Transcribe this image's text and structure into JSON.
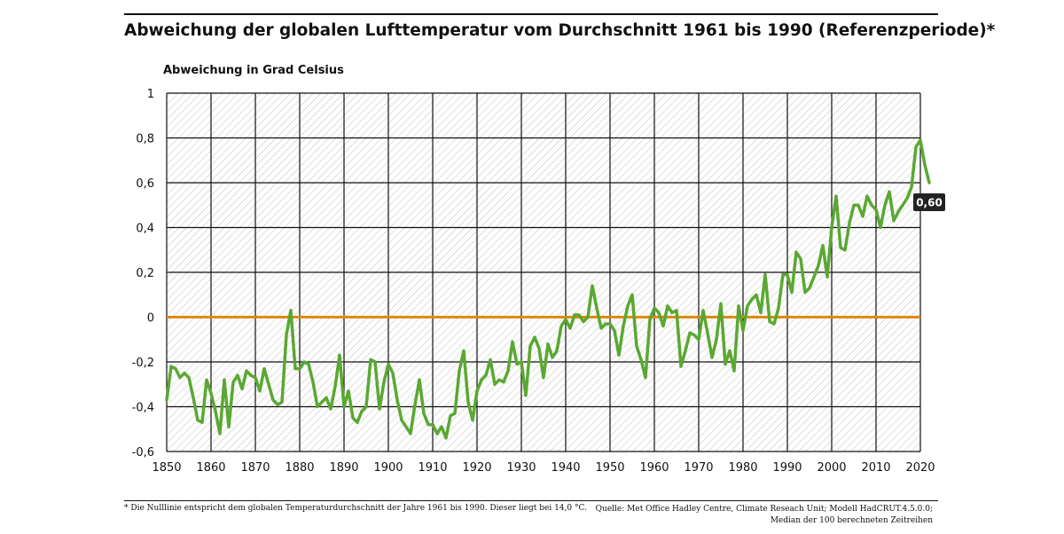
{
  "header": {
    "title": "Abweichung der globalen Lufttemperatur vom Durchschnitt 1961 bis 1990 (Referenzperiode)*",
    "y_axis_title": "Abweichung in Grad Celsius"
  },
  "footer": {
    "footnote": "* Die Nulllinie entspricht dem globalen Temperaturdurchschnitt der Jahre 1961 bis 1990. Dieser liegt bei 14,0 °C.",
    "source_line1": "Quelle: Met Office Hadley Centre, Climate Reseach Unit; Modell HadCRUT.4.5.0.0;",
    "source_line2": "Median der 100 berechneten Zeitreihen"
  },
  "colors": {
    "series": "#5aa832",
    "zero_line": "#e08a00",
    "grid": "#111111",
    "hatch": "#c8c8c8",
    "label_bg": "#222222"
  },
  "chart_data": {
    "type": "line",
    "title": "Abweichung der globalen Lufttemperatur vom Durchschnitt 1961 bis 1990 (Referenzperiode)*",
    "ylabel": "Abweichung in Grad Celsius",
    "xlabel": "",
    "xlim": [
      1850,
      2020
    ],
    "ylim": [
      -0.6,
      1.0
    ],
    "x_ticks": [
      "1850",
      "1860",
      "1870",
      "1880",
      "1890",
      "1900",
      "1910",
      "1920",
      "1930",
      "1940",
      "1950",
      "1960",
      "1970",
      "1980",
      "1990",
      "2000",
      "2010",
      "2020"
    ],
    "y_ticks": [
      "1",
      "0,8",
      "0,6",
      "0,4",
      "0,2",
      "0",
      "-0,2",
      "-0,4",
      "-0,6"
    ],
    "grid": true,
    "reference_line": {
      "y": 0
    },
    "end_label": "0,60",
    "series": [
      {
        "x_start": 1850,
        "values": [
          -0.37,
          -0.22,
          -0.23,
          -0.27,
          -0.25,
          -0.27,
          -0.36,
          -0.46,
          -0.47,
          -0.28,
          -0.34,
          -0.42,
          -0.52,
          -0.28,
          -0.49,
          -0.29,
          -0.26,
          -0.32,
          -0.24,
          -0.26,
          -0.27,
          -0.33,
          -0.23,
          -0.3,
          -0.37,
          -0.39,
          -0.38,
          -0.08,
          0.03,
          -0.23,
          -0.23,
          -0.2,
          -0.21,
          -0.29,
          -0.4,
          -0.38,
          -0.36,
          -0.41,
          -0.31,
          -0.17,
          -0.4,
          -0.33,
          -0.45,
          -0.47,
          -0.42,
          -0.4,
          -0.19,
          -0.2,
          -0.41,
          -0.29,
          -0.21,
          -0.25,
          -0.37,
          -0.46,
          -0.49,
          -0.52,
          -0.39,
          -0.28,
          -0.43,
          -0.48,
          -0.48,
          -0.52,
          -0.49,
          -0.54,
          -0.44,
          -0.43,
          -0.24,
          -0.15,
          -0.38,
          -0.46,
          -0.33,
          -0.28,
          -0.26,
          -0.19,
          -0.3,
          -0.28,
          -0.29,
          -0.24,
          -0.11,
          -0.21,
          -0.2,
          -0.35,
          -0.13,
          -0.09,
          -0.14,
          -0.27,
          -0.12,
          -0.18,
          -0.15,
          -0.04,
          -0.01,
          -0.05,
          0.01,
          0.01,
          -0.02,
          0.0,
          0.14,
          0.04,
          -0.05,
          -0.03,
          -0.03,
          -0.06,
          -0.17,
          -0.04,
          0.05,
          0.1,
          -0.13,
          -0.19,
          -0.27,
          -0.01,
          0.04,
          0.02,
          -0.04,
          0.05,
          0.02,
          0.03,
          -0.22,
          -0.15,
          -0.07,
          -0.08,
          -0.1,
          0.03,
          -0.07,
          -0.18,
          -0.1,
          0.06,
          -0.21,
          -0.15,
          -0.24,
          0.05,
          -0.06,
          0.05,
          0.08,
          0.1,
          0.02,
          0.19,
          -0.02,
          -0.03,
          0.04,
          0.19,
          0.19,
          0.11,
          0.29,
          0.26,
          0.11,
          0.13,
          0.18,
          0.23,
          0.32,
          0.18,
          0.4,
          0.54,
          0.31,
          0.3,
          0.42,
          0.5,
          0.5,
          0.45,
          0.54,
          0.5,
          0.48,
          0.4,
          0.5,
          0.56,
          0.43,
          0.47,
          0.5,
          0.53,
          0.58,
          0.76,
          0.79,
          0.68,
          0.6
        ]
      }
    ]
  }
}
